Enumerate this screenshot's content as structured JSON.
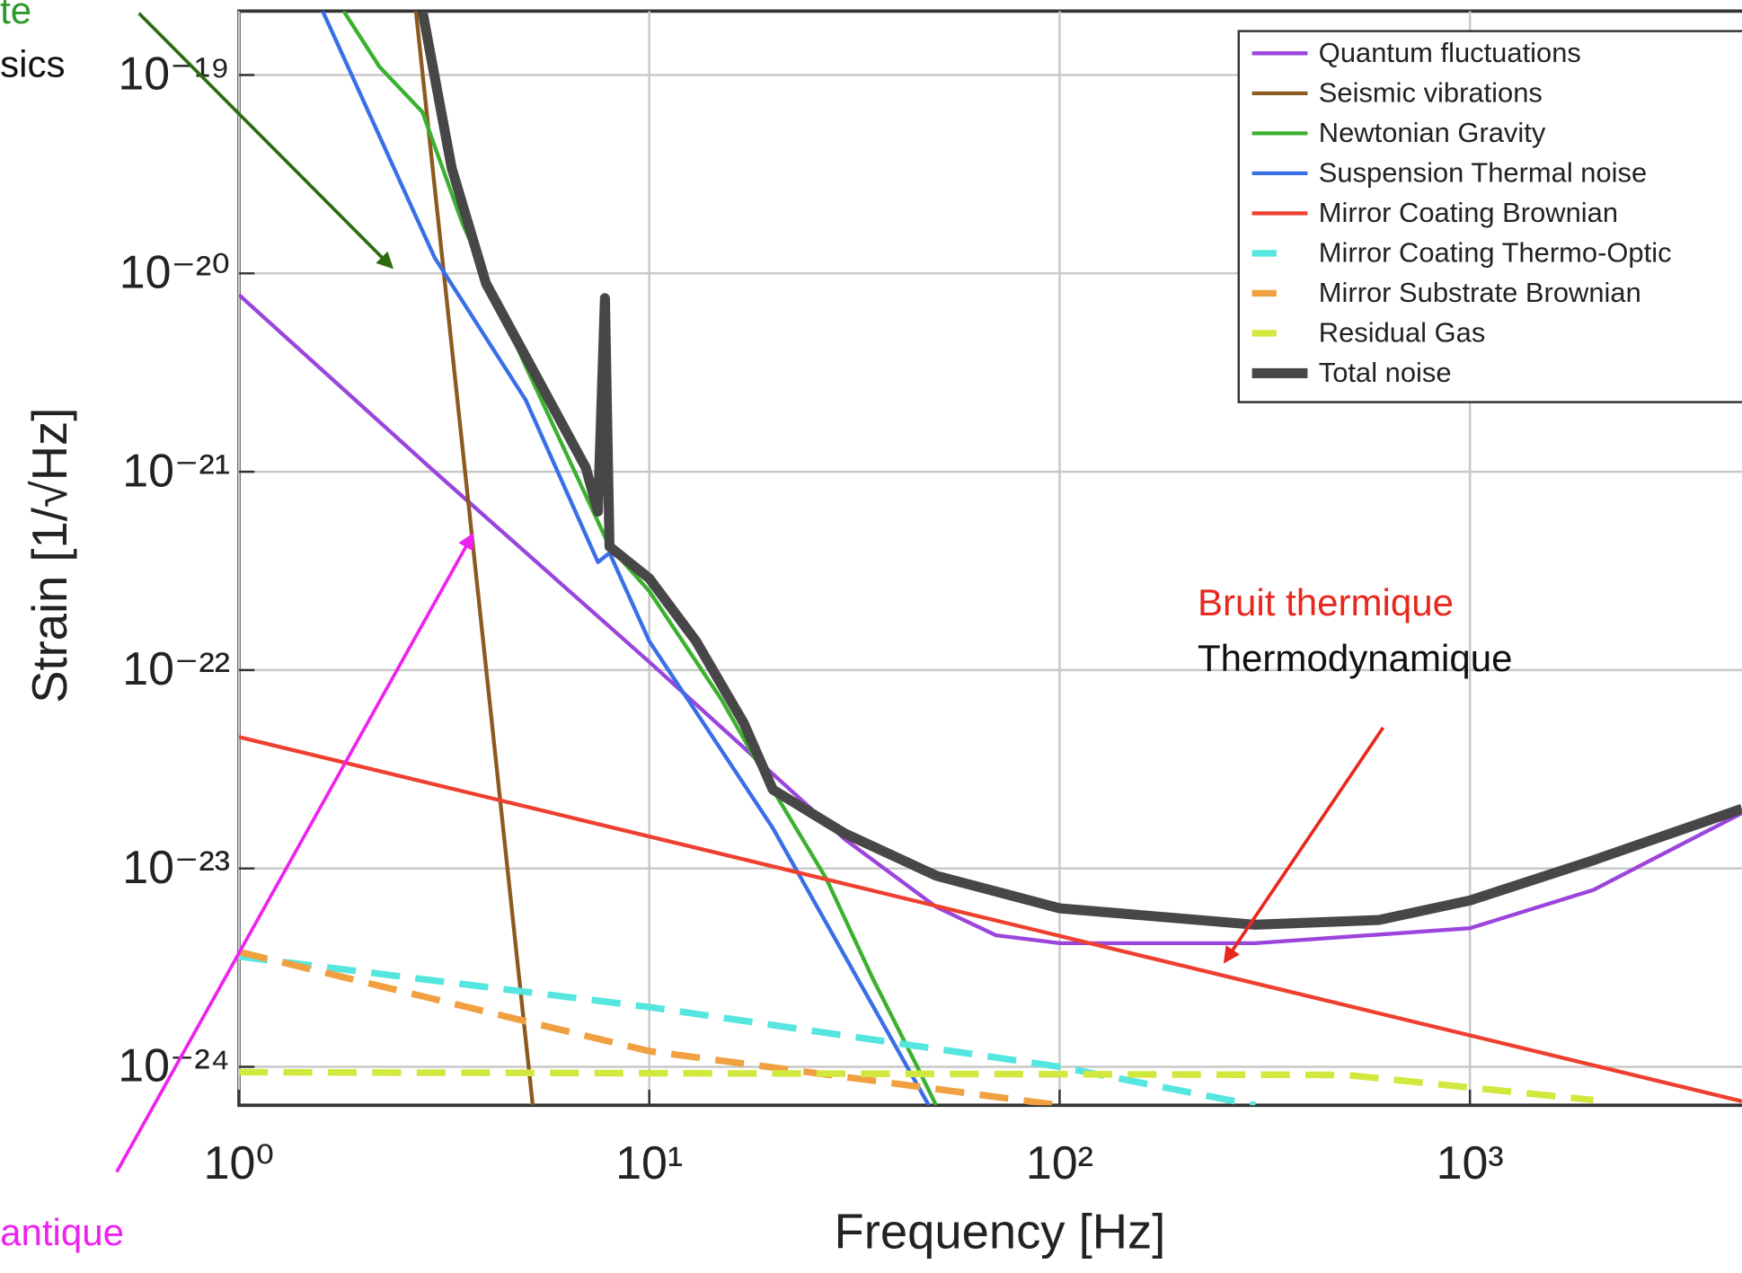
{
  "chart_data": {
    "type": "line",
    "xlabel": "Frequency [Hz]",
    "ylabel": "Strain [1/√Hz]",
    "log_x": true,
    "log_y": true,
    "grid": true,
    "legend": "upper right",
    "xlim": [
      1,
      4600
    ],
    "ylim": [
      6.4e-25,
      2.1e-19
    ],
    "xticks": [
      {
        "value": 1,
        "label": "10⁰"
      },
      {
        "value": 10,
        "label": "10¹"
      },
      {
        "value": 100,
        "label": "10²"
      },
      {
        "value": 1000,
        "label": "10³"
      }
    ],
    "yticks": [
      {
        "value": 1e-24,
        "label": "10⁻²⁴"
      },
      {
        "value": 1e-23,
        "label": "10⁻²³"
      },
      {
        "value": 1e-22,
        "label": "10⁻²²"
      },
      {
        "value": 1e-21,
        "label": "10⁻²¹"
      },
      {
        "value": 1e-20,
        "label": "10⁻²⁰"
      },
      {
        "value": 1e-19,
        "label": "10⁻¹⁹"
      }
    ],
    "series": [
      {
        "name": "Quantum fluctuations",
        "color": "#9b45dc",
        "linestyle": "solid",
        "x": [
          1,
          3,
          10,
          30,
          50,
          70,
          100,
          300,
          1000,
          2000,
          4600
        ],
        "values": [
          7.8e-21,
          1e-21,
          1.1e-22,
          1.4e-23,
          6.4e-24,
          4.6e-24,
          4.2e-24,
          4.2e-24,
          5e-24,
          7.8e-24,
          1.9e-23
        ]
      },
      {
        "name": "Seismic vibrations",
        "color": "#8b5a1e",
        "linestyle": "solid",
        "x": [
          2.7,
          5.2
        ],
        "values": [
          2.1e-19,
          6.4e-25
        ]
      },
      {
        "name": "Newtonian Gravity",
        "color": "#3cb030",
        "linestyle": "solid",
        "x": [
          1.8,
          2.2,
          2.8,
          3.5,
          5,
          8,
          10,
          15,
          20,
          27,
          35,
          45,
          50
        ],
        "values": [
          2.1e-19,
          1.1e-19,
          6.5e-20,
          1.8e-20,
          3.4e-21,
          4.2e-22,
          2.5e-22,
          7.1e-23,
          2.5e-23,
          8.9e-24,
          2.8e-24,
          1e-24,
          6.4e-25
        ]
      },
      {
        "name": "Suspension Thermal noise",
        "color": "#3a6ee8",
        "linestyle": "solid",
        "x": [
          1.6,
          3,
          5,
          7.5,
          8,
          10,
          20,
          48
        ],
        "values": [
          2.1e-19,
          1.2e-20,
          2.3e-21,
          3.5e-22,
          3.9e-22,
          1.4e-22,
          1.6e-23,
          6.4e-25
        ]
      },
      {
        "name": "Mirror Coating Brownian",
        "color": "#ee4030",
        "linestyle": "solid",
        "x": [
          1,
          4600
        ],
        "values": [
          4.6e-23,
          6.7e-25
        ]
      },
      {
        "name": "Mirror Coating Thermo-Optic",
        "color": "#55e6df",
        "linestyle": "dashed",
        "x": [
          1,
          10,
          100,
          300
        ],
        "values": [
          3.6e-24,
          2e-24,
          1e-24,
          6.4e-25
        ]
      },
      {
        "name": "Mirror Substrate Brownian",
        "color": "#f0a040",
        "linestyle": "dashed",
        "x": [
          1,
          10,
          100
        ],
        "values": [
          3.8e-24,
          1.2e-24,
          6.4e-25
        ]
      },
      {
        "name": "Residual Gas",
        "color": "#d2e83e",
        "linestyle": "dashed",
        "x": [
          1,
          500,
          2000
        ],
        "values": [
          9.4e-25,
          9.1e-25,
          6.8e-25
        ]
      },
      {
        "name": "Total noise",
        "color": "#474747",
        "linestyle": "thick",
        "x": [
          2.8,
          3.3,
          4,
          5,
          7,
          7.5,
          7.8,
          8,
          10,
          13,
          17,
          20,
          30,
          50,
          100,
          300,
          600,
          1000,
          2000,
          4600
        ],
        "values": [
          2.1e-19,
          3.4e-20,
          8.9e-21,
          3.8e-21,
          1.05e-21,
          6.3e-22,
          7.5e-21,
          4.2e-22,
          2.9e-22,
          1.4e-22,
          5.4e-23,
          2.5e-23,
          1.5e-23,
          9.2e-24,
          6.3e-24,
          5.2e-24,
          5.5e-24,
          6.9e-24,
          1.1e-23,
          2e-23
        ]
      }
    ],
    "annotations": [
      {
        "text": "te",
        "color": "#2a9a2a"
      },
      {
        "text": "sics",
        "color": "#111111"
      },
      {
        "text": "antique",
        "color": "#ee22ee"
      },
      {
        "text": "Bruit thermique",
        "color": "#e8281e"
      },
      {
        "text": "Thermodynamique",
        "color": "#111111"
      }
    ]
  }
}
